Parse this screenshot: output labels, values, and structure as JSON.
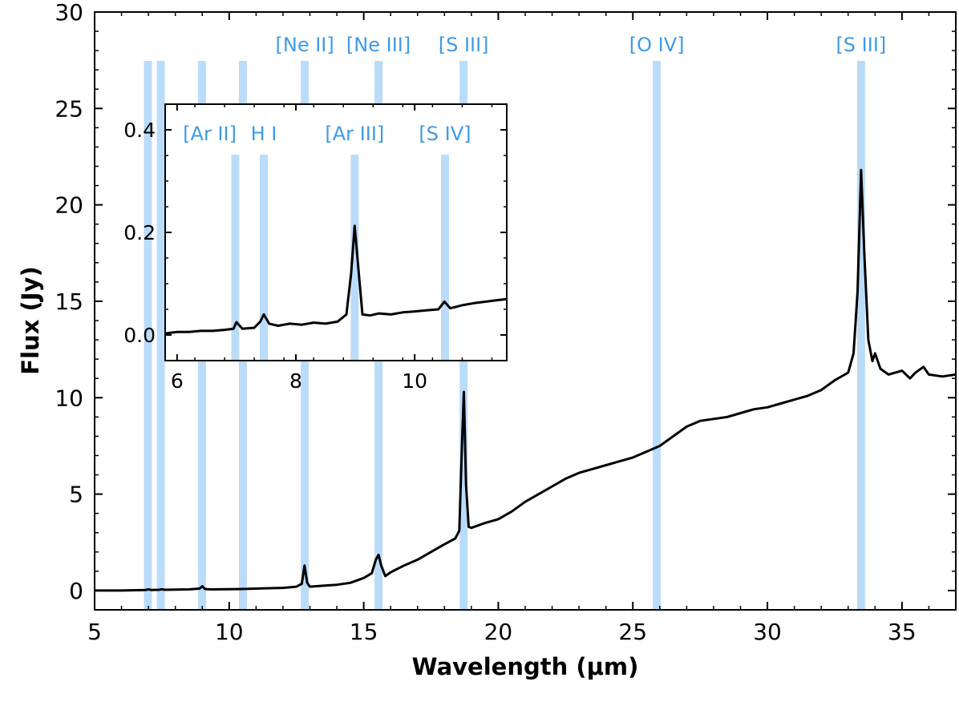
{
  "chart_data": [
    {
      "id": "main",
      "type": "line",
      "xlabel": "Wavelength (μm)",
      "ylabel": "Flux (Jy)",
      "xlim": [
        5,
        37
      ],
      "ylim": [
        -1,
        30
      ],
      "xticks": [
        5,
        10,
        15,
        20,
        25,
        30,
        35
      ],
      "yticks": [
        0,
        5,
        10,
        15,
        20,
        25,
        30
      ],
      "xtick_labels": [
        "5",
        "10",
        "15",
        "20",
        "25",
        "30",
        "35"
      ],
      "ytick_labels": [
        "0",
        "5",
        "10",
        "15",
        "20",
        "25",
        "30"
      ],
      "highlight_color": "#badcfa",
      "label_color": "#3d9be8",
      "line_color": "#000000",
      "highlight_lines": [
        6.98,
        7.46,
        8.99,
        10.51,
        12.81,
        15.55,
        18.71,
        25.89,
        33.48
      ],
      "line_labels": [
        {
          "text": "[Ne II]",
          "x": 12.81
        },
        {
          "text": "[Ne III]",
          "x": 15.55
        },
        {
          "text": "[S III]",
          "x": 18.71
        },
        {
          "text": "[O IV]",
          "x": 25.89
        },
        {
          "text": "[S III]",
          "x": 33.48
        }
      ],
      "series": [
        {
          "name": "spectrum",
          "x": [
            5.0,
            6.0,
            6.9,
            7.0,
            7.1,
            7.4,
            7.5,
            7.6,
            8.0,
            8.5,
            8.9,
            9.0,
            9.1,
            9.3,
            10.0,
            10.5,
            11.0,
            11.5,
            12.0,
            12.5,
            12.7,
            12.8,
            12.9,
            13.0,
            13.5,
            14.0,
            14.5,
            15.0,
            15.3,
            15.45,
            15.55,
            15.65,
            15.8,
            16.0,
            16.5,
            17.0,
            17.5,
            18.0,
            18.4,
            18.55,
            18.65,
            18.72,
            18.8,
            18.9,
            19.0,
            19.5,
            20.0,
            20.5,
            21.0,
            21.5,
            22.0,
            22.5,
            23.0,
            23.5,
            24.0,
            24.5,
            25.0,
            25.5,
            26.0,
            26.5,
            27.0,
            27.5,
            28.0,
            28.5,
            29.0,
            29.5,
            30.0,
            30.5,
            31.0,
            31.5,
            32.0,
            32.5,
            33.0,
            33.2,
            33.35,
            33.48,
            33.6,
            33.75,
            33.9,
            34.0,
            34.2,
            34.5,
            35.0,
            35.3,
            35.5,
            35.8,
            36.0,
            36.5,
            37.0
          ],
          "y": [
            0.0,
            0.0,
            0.03,
            0.06,
            0.03,
            0.04,
            0.07,
            0.04,
            0.05,
            0.06,
            0.1,
            0.22,
            0.08,
            0.06,
            0.07,
            0.08,
            0.1,
            0.12,
            0.14,
            0.2,
            0.35,
            1.3,
            0.4,
            0.2,
            0.25,
            0.3,
            0.4,
            0.65,
            0.9,
            1.6,
            1.85,
            1.3,
            0.75,
            0.95,
            1.3,
            1.6,
            2.0,
            2.4,
            2.7,
            3.1,
            7.5,
            10.3,
            5.5,
            3.3,
            3.25,
            3.5,
            3.7,
            4.1,
            4.6,
            5.0,
            5.4,
            5.8,
            6.1,
            6.3,
            6.5,
            6.7,
            6.9,
            7.2,
            7.5,
            8.0,
            8.5,
            8.8,
            8.9,
            9.0,
            9.2,
            9.4,
            9.5,
            9.7,
            9.9,
            10.1,
            10.4,
            10.9,
            11.3,
            12.3,
            15.5,
            21.8,
            17.5,
            13.0,
            11.9,
            12.3,
            11.5,
            11.2,
            11.4,
            11.0,
            11.3,
            11.6,
            11.2,
            11.1,
            11.2
          ]
        }
      ]
    },
    {
      "id": "inset",
      "type": "line",
      "xlim": [
        5.8,
        11.55
      ],
      "ylim": [
        -0.05,
        0.45
      ],
      "xticks": [
        6,
        8,
        10
      ],
      "yticks": [
        0.0,
        0.2,
        0.4
      ],
      "xtick_labels": [
        "6",
        "8",
        "10"
      ],
      "ytick_labels": [
        "0.0",
        "0.2",
        "0.4"
      ],
      "highlight_lines": [
        6.98,
        7.46,
        8.99,
        10.51
      ],
      "line_labels": [
        {
          "text": "[Ar II]",
          "x": 6.55
        },
        {
          "text": "H I",
          "x": 7.46
        },
        {
          "text": "[Ar III]",
          "x": 8.99
        },
        {
          "text": "[S IV]",
          "x": 10.51
        }
      ],
      "series": [
        {
          "name": "spectrum",
          "x": [
            5.8,
            6.0,
            6.2,
            6.4,
            6.6,
            6.8,
            6.95,
            7.0,
            7.1,
            7.3,
            7.4,
            7.46,
            7.55,
            7.7,
            7.9,
            8.1,
            8.3,
            8.5,
            8.7,
            8.85,
            8.93,
            8.99,
            9.06,
            9.12,
            9.25,
            9.4,
            9.6,
            9.8,
            10.0,
            10.2,
            10.4,
            10.5,
            10.6,
            10.8,
            11.0,
            11.2,
            11.4,
            11.55
          ],
          "y": [
            0.003,
            0.006,
            0.006,
            0.008,
            0.008,
            0.01,
            0.012,
            0.025,
            0.012,
            0.014,
            0.026,
            0.04,
            0.022,
            0.018,
            0.022,
            0.02,
            0.024,
            0.022,
            0.026,
            0.04,
            0.12,
            0.213,
            0.12,
            0.04,
            0.038,
            0.042,
            0.04,
            0.044,
            0.046,
            0.048,
            0.05,
            0.065,
            0.052,
            0.058,
            0.062,
            0.065,
            0.068,
            0.07
          ]
        }
      ]
    }
  ]
}
